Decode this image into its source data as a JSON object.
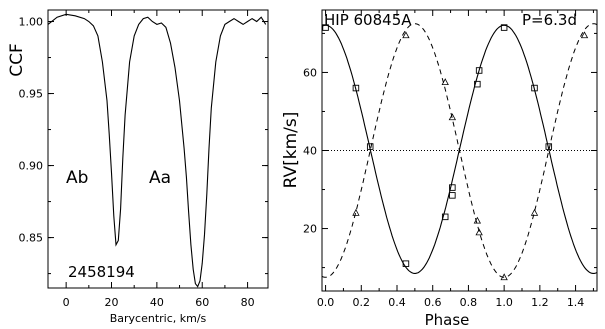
{
  "chart_data": [
    {
      "type": "line",
      "ylabel": "CCF",
      "xlabel": "Barycentric, km/s",
      "xlim": [
        -8,
        89
      ],
      "ylim": [
        0.815,
        1.008
      ],
      "xticks": [
        0,
        20,
        40,
        60,
        80
      ],
      "yticks": [
        0.85,
        0.9,
        0.95,
        1.0
      ],
      "ytick_labels": [
        "0.85",
        "0.90",
        "0.95",
        "1.00"
      ],
      "annotations": [
        "Ab",
        "Aa",
        "2458194"
      ],
      "series": [
        {
          "x": [
            -8,
            -4,
            0,
            4,
            8,
            10,
            12,
            14,
            16,
            18,
            19,
            20,
            21,
            22,
            23,
            24,
            25,
            26,
            28,
            30,
            32,
            34,
            36,
            38,
            40,
            42,
            44,
            46,
            48,
            50,
            52,
            53,
            54,
            55,
            56,
            57,
            58,
            59,
            60,
            61,
            62,
            63,
            64,
            66,
            68,
            70,
            72,
            74,
            76,
            78,
            80,
            82,
            84,
            86,
            88
          ],
          "y": [
            0.998,
            1.003,
            1.005,
            1.004,
            1.002,
            1.0,
            0.997,
            0.99,
            0.972,
            0.945,
            0.922,
            0.895,
            0.865,
            0.845,
            0.848,
            0.87,
            0.905,
            0.935,
            0.972,
            0.99,
            0.998,
            1.002,
            1.003,
            1.0,
            0.998,
            0.999,
            0.996,
            0.985,
            0.968,
            0.945,
            0.912,
            0.892,
            0.868,
            0.845,
            0.828,
            0.818,
            0.816,
            0.82,
            0.832,
            0.852,
            0.88,
            0.912,
            0.94,
            0.972,
            0.99,
            0.998,
            1.0,
            1.002,
            1.0,
            0.998,
            1.0,
            1.002,
            1.0,
            1.003,
            0.998
          ]
        }
      ]
    },
    {
      "type": "scatter",
      "title": "HIP 60845A",
      "annotation": "P=6.3d",
      "ylabel": "RV[km/s]",
      "xlabel": "Phase",
      "xlim": [
        -0.02,
        1.52
      ],
      "ylim": [
        4,
        76
      ],
      "xticks": [
        0.0,
        0.2,
        0.4,
        0.6,
        0.8,
        1.0,
        1.2,
        1.4
      ],
      "xtick_labels": [
        "0.0",
        "0.2",
        "0.4",
        "0.6",
        "0.8",
        "1.0",
        "1.2",
        "1.4"
      ],
      "yticks": [
        20,
        40,
        60
      ],
      "ytick_labels": [
        "20",
        "40",
        "60"
      ],
      "gamma_level": 40,
      "series": [
        {
          "style": "solid",
          "marker": "square",
          "model_center": 40.3,
          "model_amplitude": 31.8,
          "model_phase_of_max": 0.0,
          "x": [
            0.0,
            0.17,
            0.25,
            0.45,
            0.67,
            0.71,
            0.71,
            0.85,
            0.86,
            1.0,
            1.17,
            1.25
          ],
          "y": [
            71.5,
            56,
            41,
            11,
            23,
            28.5,
            30.5,
            57,
            60.5,
            71.5,
            56,
            41
          ]
        },
        {
          "style": "dashed",
          "marker": "triangle",
          "model_center": 40.0,
          "model_amplitude": 32.5,
          "model_phase_of_max": 0.5,
          "x": [
            0.17,
            0.45,
            0.67,
            0.71,
            0.85,
            0.86,
            1.0,
            1.17,
            1.45
          ],
          "y": [
            24,
            69.5,
            57.5,
            48.5,
            22,
            19,
            7.5,
            24,
            69.5
          ]
        }
      ]
    }
  ]
}
